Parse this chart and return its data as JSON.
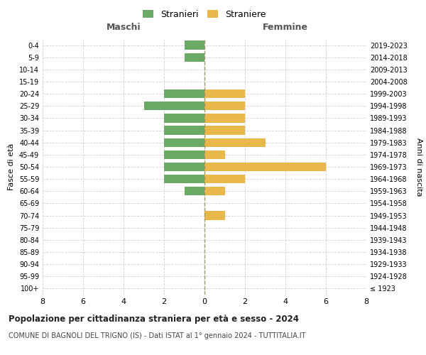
{
  "age_groups": [
    "100+",
    "95-99",
    "90-94",
    "85-89",
    "80-84",
    "75-79",
    "70-74",
    "65-69",
    "60-64",
    "55-59",
    "50-54",
    "45-49",
    "40-44",
    "35-39",
    "30-34",
    "25-29",
    "20-24",
    "15-19",
    "10-14",
    "5-9",
    "0-4"
  ],
  "birth_years": [
    "≤ 1923",
    "1924-1928",
    "1929-1933",
    "1934-1938",
    "1939-1943",
    "1944-1948",
    "1949-1953",
    "1954-1958",
    "1959-1963",
    "1964-1968",
    "1969-1973",
    "1974-1978",
    "1979-1983",
    "1984-1988",
    "1989-1993",
    "1994-1998",
    "1999-2003",
    "2004-2008",
    "2009-2013",
    "2014-2018",
    "2019-2023"
  ],
  "males": [
    0,
    0,
    0,
    0,
    0,
    0,
    0,
    0,
    1,
    2,
    2,
    2,
    2,
    2,
    2,
    3,
    2,
    0,
    0,
    1,
    1
  ],
  "females": [
    0,
    0,
    0,
    0,
    0,
    0,
    1,
    0,
    1,
    2,
    6,
    1,
    3,
    2,
    2,
    2,
    2,
    0,
    0,
    0,
    0
  ],
  "male_color": "#6aaa64",
  "female_color": "#e8b84b",
  "title": "Popolazione per cittadinanza straniera per età e sesso - 2024",
  "subtitle": "COMUNE DI BAGNOLI DEL TRIGNO (IS) - Dati ISTAT al 1° gennaio 2024 - TUTTITALIA.IT",
  "xlabel_left": "Maschi",
  "xlabel_right": "Femmine",
  "ylabel_left": "Fasce di età",
  "ylabel_right": "Anni di nascita",
  "legend_male": "Stranieri",
  "legend_female": "Straniere",
  "xlim": 8,
  "background_color": "#ffffff",
  "grid_color": "#d0d0d0"
}
